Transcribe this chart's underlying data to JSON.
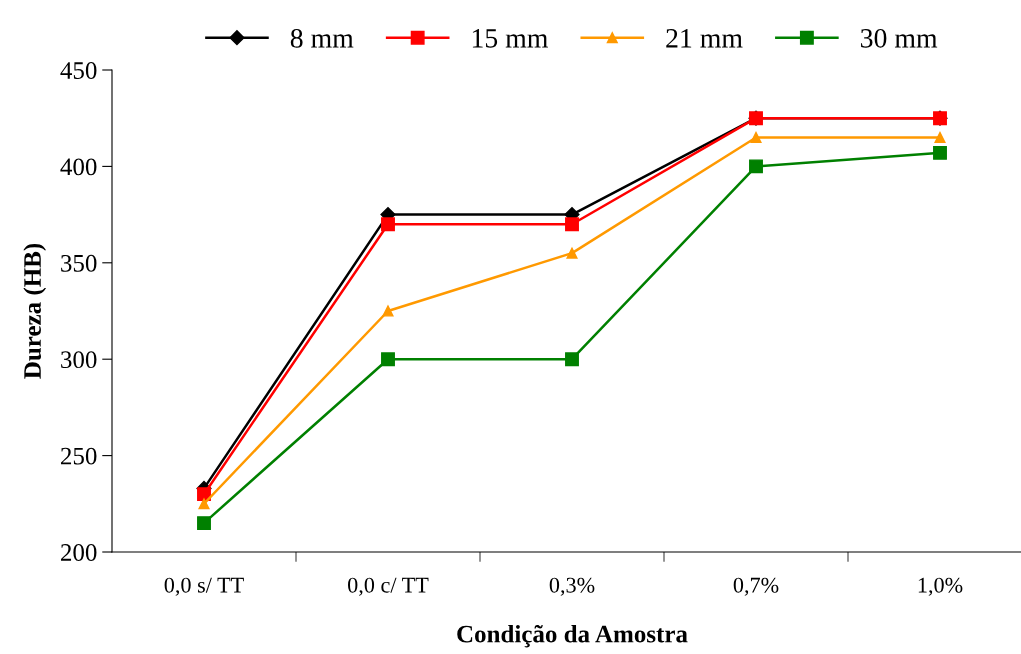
{
  "chart_data": {
    "type": "line",
    "xlabel": "Condição da Amostra",
    "ylabel": "Dureza (HB)",
    "categories": [
      "0,0 s/ TT",
      "0,0 c/ TT",
      "0,3%",
      "0,7%",
      "1,0%"
    ],
    "ylim": [
      200,
      450
    ],
    "yticks": [
      200,
      250,
      300,
      350,
      400,
      450
    ],
    "grid": false,
    "legend": "top",
    "line_style": "solid",
    "series": [
      {
        "name": "8 mm",
        "color": "#000000",
        "marker": "diamond",
        "values": [
          233,
          375,
          375,
          425,
          425
        ]
      },
      {
        "name": "15 mm",
        "color": "#ff0000",
        "marker": "square",
        "values": [
          230,
          370,
          370,
          425,
          425
        ]
      },
      {
        "name": "21 mm",
        "color": "#ff9900",
        "marker": "triangle",
        "values": [
          225,
          325,
          355,
          415,
          415
        ]
      },
      {
        "name": "30 mm",
        "color": "#008000",
        "marker": "square",
        "values": [
          215,
          300,
          300,
          400,
          407
        ]
      }
    ]
  }
}
